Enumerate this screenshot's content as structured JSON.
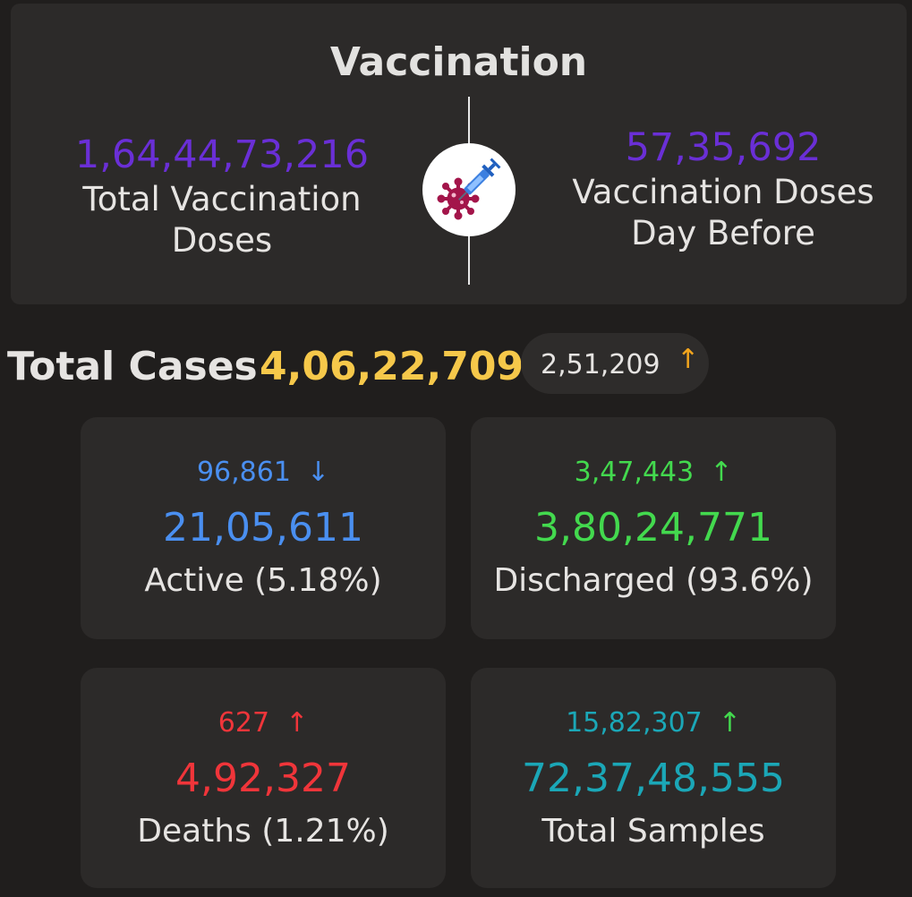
{
  "vaccination": {
    "title": "Vaccination",
    "total_doses": {
      "value": "1,64,44,73,216",
      "label": "Total Vaccination Doses"
    },
    "day_before": {
      "value": "57,35,692",
      "label": "Vaccination Doses Day Before"
    },
    "icon": "vaccine-syringe-virus-icon"
  },
  "total_cases": {
    "label": "Total Cases",
    "value": "4,06,22,709",
    "delta": "2,51,209",
    "delta_direction": "up",
    "delta_arrow": "↑"
  },
  "stats": [
    {
      "label": "Active (5.18%)",
      "value": "21,05,611",
      "delta": "96,861",
      "arrow": "↓",
      "color": "#4a8ff0",
      "delta_color": "#4a8ff0"
    },
    {
      "label": "Discharged (93.6%)",
      "value": "3,80,24,771",
      "delta": "3,47,443",
      "arrow": "↑",
      "color": "#43d94e",
      "delta_color": "#43d94e"
    },
    {
      "label": "Deaths (1.21%)",
      "value": "4,92,327",
      "delta": "627",
      "arrow": "↑",
      "color": "#f0353a",
      "delta_color": "#f0353a"
    },
    {
      "label": "Total Samples",
      "value": "72,37,48,555",
      "delta": "15,82,307",
      "arrow": "↑",
      "color": "#1ba7b7",
      "delta_color": "#1ba7b7",
      "arrow_color": "#43d94e"
    }
  ]
}
